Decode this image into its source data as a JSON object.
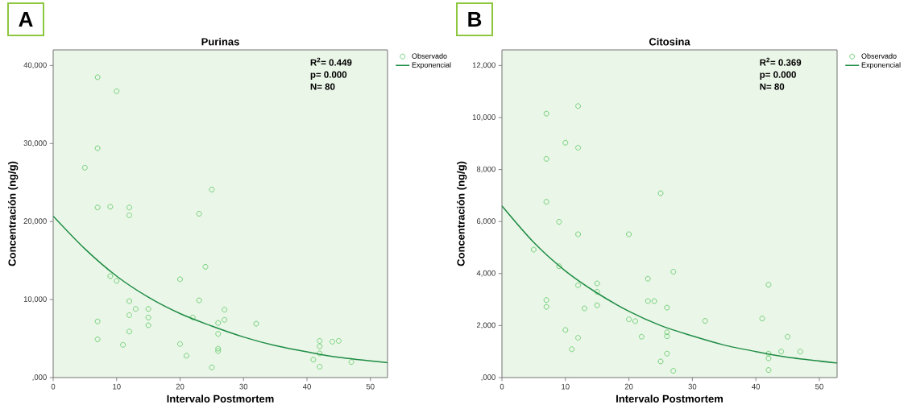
{
  "chart_data": [
    {
      "type": "scatter",
      "title": "Purinas",
      "xlabel": "Intervalo Postmortem",
      "ylabel": "Concentración (ng/g)",
      "annotations": [
        "A",
        "R$^{2}$= 0.449",
        "p= 0.000",
        "N= 80"
      ],
      "xlim": [
        0,
        52.7
      ],
      "ylim": [
        0,
        42000
      ],
      "xticks": [
        0,
        10,
        20,
        30,
        40,
        50
      ],
      "yticks": [
        {
          "value": 0,
          "label": ",000"
        },
        {
          "value": 10000,
          "label": "10,000"
        },
        {
          "value": 20000,
          "label": "20,000"
        },
        {
          "value": 30000,
          "label": "30,000"
        },
        {
          "value": 40000,
          "label": "40,000"
        }
      ],
      "grid": false,
      "legend": "top right",
      "series": [
        {
          "name": "Observado",
          "color": "#66cc6e",
          "marker": "circle",
          "x": [
            7,
            10,
            7,
            5,
            7,
            9,
            12,
            12,
            23,
            25,
            24,
            9,
            10,
            20,
            12,
            23,
            13,
            15,
            12,
            15,
            15,
            7,
            7,
            12,
            11,
            20,
            21,
            22,
            25,
            27,
            27,
            26,
            26,
            26,
            26,
            32,
            42,
            42,
            42,
            42,
            41,
            44,
            45,
            47
          ],
          "values": [
            38500,
            36700,
            29400,
            26900,
            21800,
            21900,
            21800,
            20800,
            21000,
            24100,
            14200,
            13000,
            12400,
            12600,
            9800,
            9900,
            8800,
            8800,
            8000,
            7700,
            6700,
            7200,
            4900,
            5900,
            4200,
            4300,
            2800,
            7700,
            1300,
            8700,
            7400,
            7000,
            5600,
            3700,
            3400,
            6900,
            4700,
            4000,
            3100,
            1400,
            2300,
            4600,
            4700,
            2000
          ]
        },
        {
          "name": "Exponencial",
          "type": "line",
          "color": "#1e8c45",
          "x": [
            0,
            5,
            10,
            15,
            20,
            25,
            30,
            35,
            40,
            45,
            52.7
          ],
          "values": [
            20700,
            16500,
            13000,
            10300,
            8200,
            6600,
            5200,
            4100,
            3300,
            2600,
            1900
          ]
        }
      ]
    },
    {
      "type": "scatter",
      "title": "Citosina",
      "xlabel": "Intervalo Postmortem",
      "ylabel": "Concentración (ng/g)",
      "annotations": [
        "B",
        "R$^{2}$= 0.369",
        "p= 0.000",
        "N= 80"
      ],
      "xlim": [
        0,
        52.8
      ],
      "ylim": [
        0,
        12600
      ],
      "xticks": [
        0,
        10,
        20,
        30,
        40,
        50
      ],
      "yticks": [
        {
          "value": 0,
          "label": ",000"
        },
        {
          "value": 2000,
          "label": "2,000"
        },
        {
          "value": 4000,
          "label": "4,000"
        },
        {
          "value": 6000,
          "label": "6,000"
        },
        {
          "value": 8000,
          "label": "8,000"
        },
        {
          "value": 10000,
          "label": "10,000"
        },
        {
          "value": 12000,
          "label": "12,000"
        }
      ],
      "grid": false,
      "legend": "top right",
      "series": [
        {
          "name": "Observado",
          "color": "#66cc6e",
          "marker": "circle",
          "x": [
            7,
            12,
            10,
            12,
            7,
            7,
            9,
            12,
            20,
            5,
            9,
            25,
            12,
            15,
            15,
            15,
            13,
            7,
            7,
            10,
            12,
            11,
            20,
            21,
            22,
            23,
            23,
            24,
            27,
            26,
            26,
            26,
            26,
            25,
            27,
            32,
            42,
            41,
            45,
            44,
            47,
            42,
            42,
            42
          ],
          "values": [
            10150,
            10440,
            9030,
            8840,
            8410,
            6760,
            5990,
            5510,
            5510,
            4920,
            4280,
            7090,
            3550,
            3620,
            3300,
            2780,
            2660,
            2980,
            2720,
            1830,
            1530,
            1090,
            2240,
            2170,
            1570,
            3800,
            2940,
            2940,
            4070,
            2690,
            1740,
            1590,
            920,
            620,
            260,
            2180,
            3570,
            2270,
            1570,
            1000,
            1000,
            920,
            740,
            290
          ]
        },
        {
          "name": "Exponencial",
          "type": "line",
          "color": "#1e8c45",
          "x": [
            0,
            5,
            10,
            15,
            20,
            25,
            30,
            35,
            40,
            45,
            52.8
          ],
          "values": [
            6600,
            5200,
            4100,
            3250,
            2550,
            2000,
            1600,
            1250,
            1000,
            780,
            560
          ]
        }
      ]
    }
  ]
}
